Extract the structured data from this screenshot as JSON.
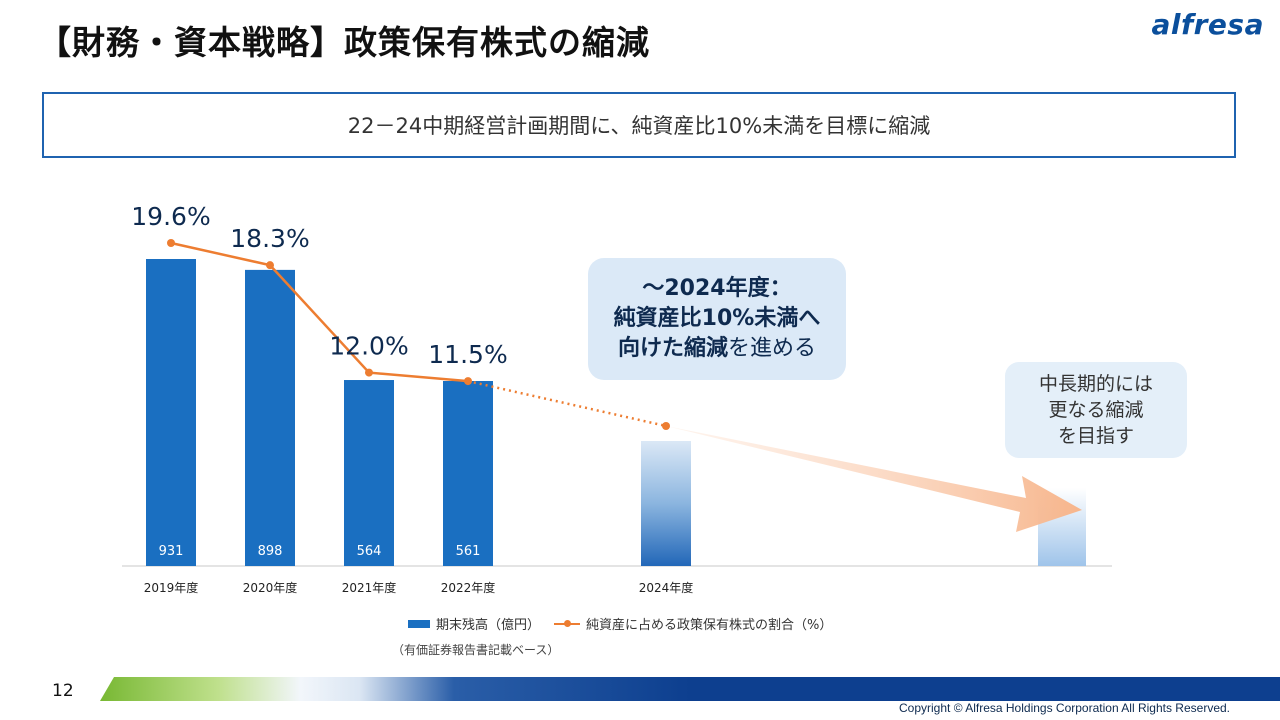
{
  "slide": {
    "title": "【財務・資本戦略】政策保有株式の縮減",
    "logo": "alfresa",
    "banner": "22－24中期経営計画期間に、純資産比10%未満を目標に縮減",
    "callout_line1": "～2024年度：",
    "callout_line2": "純資産比10%未満へ",
    "callout_line3_bold": "向けた縮減",
    "callout_line3_rest": "を進める",
    "callout2_line1": "中長期的には",
    "callout2_line2": "更なる縮減",
    "callout2_line3": "を目指す",
    "legend_bar": "期末残高（億円）",
    "legend_line": "純資産に占める政策保有株式の割合（%）",
    "note": "（有価証券報告書記載ベース）",
    "page_number": "12",
    "copyright": "Copyright © Alfresa Holdings Corporation All Rights Reserved."
  },
  "chart_data": {
    "type": "bar",
    "categories": [
      "2019年度",
      "2020年度",
      "2021年度",
      "2022年度",
      "2024年度"
    ],
    "series": [
      {
        "name": "期末残高（億円）",
        "type": "bar",
        "values": [
          931,
          898,
          564,
          561,
          null
        ]
      },
      {
        "name": "純資産に占める政策保有株式の割合（%）",
        "type": "line",
        "values": [
          19.6,
          18.3,
          12.0,
          11.5,
          null
        ]
      }
    ],
    "bar_labels": [
      "931",
      "898",
      "564",
      "561"
    ],
    "line_labels": [
      "19.6%",
      "18.3%",
      "12.0%",
      "11.5%"
    ],
    "colors": {
      "bar": "#1a6fc1",
      "line": "#ed7d31",
      "future_bar": "#1f6bbf"
    }
  }
}
